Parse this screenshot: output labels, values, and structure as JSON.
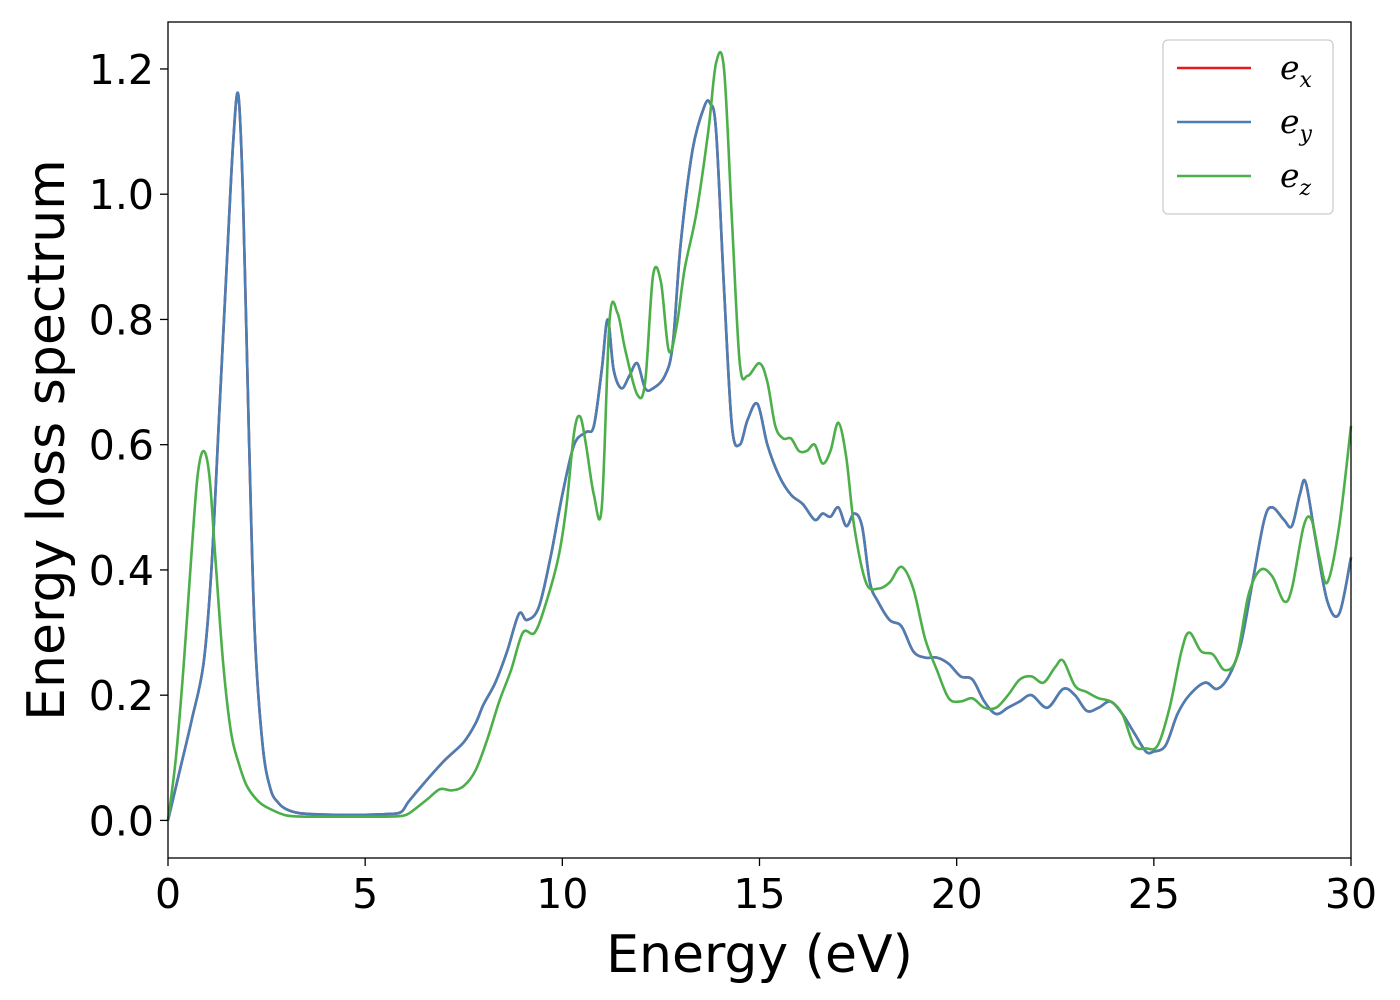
{
  "chart_data": {
    "type": "line",
    "title": "",
    "xlabel": "Energy (eV)",
    "ylabel": "Energy loss spectrum",
    "xlim": [
      0,
      30
    ],
    "ylim": [
      -0.06,
      1.275
    ],
    "xticks": [
      0,
      5,
      10,
      15,
      20,
      25,
      30
    ],
    "xtick_labels": [
      "0",
      "5",
      "10",
      "15",
      "20",
      "25",
      "30"
    ],
    "yticks": [
      0.0,
      0.2,
      0.4,
      0.6,
      0.8,
      1.0,
      1.2
    ],
    "ytick_labels": [
      "0.0",
      "0.2",
      "0.4",
      "0.6",
      "0.8",
      "1.0",
      "1.2"
    ],
    "grid": false,
    "legend_position": "top-right",
    "series": [
      {
        "name": "e_x",
        "label_base": "e",
        "label_sub": "x",
        "color": "#e41a1c",
        "x": [
          0,
          0.3,
          0.6,
          0.9,
          1.1,
          1.3,
          1.5,
          1.65,
          1.78,
          1.9,
          2.05,
          2.2,
          2.4,
          2.6,
          2.8,
          3.0,
          3.3,
          3.7,
          4.2,
          5.0,
          5.5,
          5.9,
          6.1,
          6.5,
          7.0,
          7.5,
          7.8,
          8.0,
          8.3,
          8.6,
          8.9,
          9.1,
          9.4,
          9.7,
          10.0,
          10.3,
          10.6,
          10.8,
          11.0,
          11.15,
          11.3,
          11.5,
          11.7,
          11.9,
          12.1,
          12.3,
          12.6,
          12.8,
          13.0,
          13.3,
          13.6,
          13.75,
          13.9,
          14.1,
          14.3,
          14.5,
          14.7,
          14.95,
          15.2,
          15.5,
          15.8,
          16.1,
          16.4,
          16.6,
          16.8,
          17.0,
          17.2,
          17.4,
          17.6,
          17.8,
          18.0,
          18.3,
          18.6,
          18.9,
          19.2,
          19.5,
          19.8,
          20.1,
          20.4,
          20.7,
          21.0,
          21.3,
          21.6,
          21.9,
          22.3,
          22.7,
          23.0,
          23.3,
          23.6,
          23.9,
          24.2,
          24.5,
          24.8,
          25.0,
          25.3,
          25.6,
          25.9,
          26.3,
          26.6,
          26.9,
          27.2,
          27.5,
          27.8,
          28.0,
          28.3,
          28.5,
          28.7,
          28.85,
          29.1,
          29.4,
          29.7,
          30.0
        ],
        "y": [
          0.0,
          0.08,
          0.16,
          0.25,
          0.4,
          0.65,
          0.9,
          1.08,
          1.16,
          1.0,
          0.62,
          0.3,
          0.12,
          0.05,
          0.028,
          0.018,
          0.012,
          0.01,
          0.009,
          0.009,
          0.01,
          0.013,
          0.03,
          0.06,
          0.095,
          0.125,
          0.155,
          0.185,
          0.22,
          0.27,
          0.33,
          0.32,
          0.34,
          0.42,
          0.52,
          0.6,
          0.62,
          0.63,
          0.72,
          0.8,
          0.72,
          0.69,
          0.71,
          0.73,
          0.69,
          0.69,
          0.71,
          0.76,
          0.92,
          1.07,
          1.14,
          1.145,
          1.1,
          0.85,
          0.63,
          0.6,
          0.64,
          0.665,
          0.6,
          0.55,
          0.52,
          0.505,
          0.48,
          0.49,
          0.485,
          0.5,
          0.47,
          0.49,
          0.47,
          0.38,
          0.35,
          0.32,
          0.31,
          0.27,
          0.26,
          0.26,
          0.25,
          0.23,
          0.225,
          0.19,
          0.17,
          0.18,
          0.19,
          0.2,
          0.18,
          0.21,
          0.2,
          0.175,
          0.18,
          0.19,
          0.17,
          0.14,
          0.11,
          0.11,
          0.12,
          0.17,
          0.2,
          0.22,
          0.21,
          0.23,
          0.28,
          0.38,
          0.48,
          0.5,
          0.48,
          0.47,
          0.52,
          0.54,
          0.45,
          0.35,
          0.33,
          0.42
        ]
      },
      {
        "name": "e_y",
        "label_base": "e",
        "label_sub": "y",
        "color": "#4a7fb5",
        "x": [
          0,
          0.3,
          0.6,
          0.9,
          1.1,
          1.3,
          1.5,
          1.65,
          1.78,
          1.9,
          2.05,
          2.2,
          2.4,
          2.6,
          2.8,
          3.0,
          3.3,
          3.7,
          4.2,
          5.0,
          5.5,
          5.9,
          6.1,
          6.5,
          7.0,
          7.5,
          7.8,
          8.0,
          8.3,
          8.6,
          8.9,
          9.1,
          9.4,
          9.7,
          10.0,
          10.3,
          10.6,
          10.8,
          11.0,
          11.15,
          11.3,
          11.5,
          11.7,
          11.9,
          12.1,
          12.3,
          12.6,
          12.8,
          13.0,
          13.3,
          13.6,
          13.75,
          13.9,
          14.1,
          14.3,
          14.5,
          14.7,
          14.95,
          15.2,
          15.5,
          15.8,
          16.1,
          16.4,
          16.6,
          16.8,
          17.0,
          17.2,
          17.4,
          17.6,
          17.8,
          18.0,
          18.3,
          18.6,
          18.9,
          19.2,
          19.5,
          19.8,
          20.1,
          20.4,
          20.7,
          21.0,
          21.3,
          21.6,
          21.9,
          22.3,
          22.7,
          23.0,
          23.3,
          23.6,
          23.9,
          24.2,
          24.5,
          24.8,
          25.0,
          25.3,
          25.6,
          25.9,
          26.3,
          26.6,
          26.9,
          27.2,
          27.5,
          27.8,
          28.0,
          28.3,
          28.5,
          28.7,
          28.85,
          29.1,
          29.4,
          29.7,
          30.0
        ],
        "y": [
          0.0,
          0.08,
          0.16,
          0.25,
          0.4,
          0.65,
          0.9,
          1.08,
          1.16,
          1.0,
          0.62,
          0.3,
          0.12,
          0.05,
          0.028,
          0.018,
          0.012,
          0.01,
          0.009,
          0.009,
          0.01,
          0.013,
          0.03,
          0.06,
          0.095,
          0.125,
          0.155,
          0.185,
          0.22,
          0.27,
          0.33,
          0.32,
          0.34,
          0.42,
          0.52,
          0.6,
          0.62,
          0.63,
          0.72,
          0.8,
          0.72,
          0.69,
          0.71,
          0.73,
          0.69,
          0.69,
          0.71,
          0.76,
          0.92,
          1.07,
          1.14,
          1.145,
          1.1,
          0.85,
          0.63,
          0.6,
          0.64,
          0.665,
          0.6,
          0.55,
          0.52,
          0.505,
          0.48,
          0.49,
          0.485,
          0.5,
          0.47,
          0.49,
          0.47,
          0.38,
          0.35,
          0.32,
          0.31,
          0.27,
          0.26,
          0.26,
          0.25,
          0.23,
          0.225,
          0.19,
          0.17,
          0.18,
          0.19,
          0.2,
          0.18,
          0.21,
          0.2,
          0.175,
          0.18,
          0.19,
          0.17,
          0.14,
          0.11,
          0.11,
          0.12,
          0.17,
          0.2,
          0.22,
          0.21,
          0.23,
          0.28,
          0.38,
          0.48,
          0.5,
          0.48,
          0.47,
          0.52,
          0.54,
          0.45,
          0.35,
          0.33,
          0.42
        ]
      },
      {
        "name": "e_z",
        "label_base": "e",
        "label_sub": "z",
        "color": "#4daf4a",
        "x": [
          0,
          0.2,
          0.4,
          0.6,
          0.75,
          0.9,
          1.05,
          1.2,
          1.4,
          1.6,
          1.8,
          2.0,
          2.3,
          2.6,
          3.0,
          3.5,
          4.0,
          5.0,
          5.5,
          6.0,
          6.3,
          6.6,
          6.9,
          7.2,
          7.5,
          7.8,
          8.1,
          8.4,
          8.7,
          9.0,
          9.3,
          9.6,
          9.9,
          10.1,
          10.3,
          10.45,
          10.6,
          10.8,
          11.0,
          11.2,
          11.4,
          11.6,
          11.9,
          12.1,
          12.3,
          12.5,
          12.7,
          12.9,
          13.1,
          13.4,
          13.7,
          13.9,
          14.1,
          14.3,
          14.5,
          14.7,
          15.0,
          15.2,
          15.4,
          15.6,
          15.8,
          16.0,
          16.2,
          16.4,
          16.6,
          16.8,
          17.0,
          17.2,
          17.4,
          17.7,
          18.0,
          18.3,
          18.6,
          18.9,
          19.2,
          19.5,
          19.8,
          20.1,
          20.4,
          20.7,
          21.0,
          21.3,
          21.6,
          21.9,
          22.2,
          22.5,
          22.7,
          23.0,
          23.3,
          23.6,
          23.9,
          24.2,
          24.5,
          24.8,
          25.1,
          25.4,
          25.7,
          25.9,
          26.2,
          26.5,
          26.8,
          27.1,
          27.4,
          27.7,
          28.0,
          28.3,
          28.5,
          28.8,
          29.0,
          29.2,
          29.4,
          29.7,
          30.0
        ],
        "y": [
          0.0,
          0.1,
          0.25,
          0.43,
          0.55,
          0.59,
          0.55,
          0.42,
          0.25,
          0.14,
          0.09,
          0.055,
          0.03,
          0.018,
          0.008,
          0.006,
          0.006,
          0.006,
          0.006,
          0.008,
          0.02,
          0.035,
          0.05,
          0.048,
          0.055,
          0.08,
          0.13,
          0.19,
          0.24,
          0.3,
          0.3,
          0.35,
          0.42,
          0.5,
          0.62,
          0.645,
          0.6,
          0.52,
          0.5,
          0.8,
          0.81,
          0.75,
          0.68,
          0.7,
          0.87,
          0.86,
          0.75,
          0.79,
          0.88,
          0.97,
          1.1,
          1.21,
          1.2,
          0.96,
          0.73,
          0.71,
          0.73,
          0.7,
          0.63,
          0.61,
          0.61,
          0.59,
          0.59,
          0.6,
          0.57,
          0.59,
          0.635,
          0.58,
          0.47,
          0.38,
          0.37,
          0.38,
          0.405,
          0.37,
          0.29,
          0.24,
          0.195,
          0.19,
          0.195,
          0.18,
          0.18,
          0.2,
          0.225,
          0.23,
          0.22,
          0.245,
          0.255,
          0.215,
          0.205,
          0.195,
          0.19,
          0.17,
          0.12,
          0.115,
          0.12,
          0.18,
          0.27,
          0.3,
          0.27,
          0.265,
          0.24,
          0.26,
          0.36,
          0.4,
          0.39,
          0.35,
          0.37,
          0.47,
          0.48,
          0.42,
          0.38,
          0.47,
          0.63
        ]
      }
    ]
  }
}
